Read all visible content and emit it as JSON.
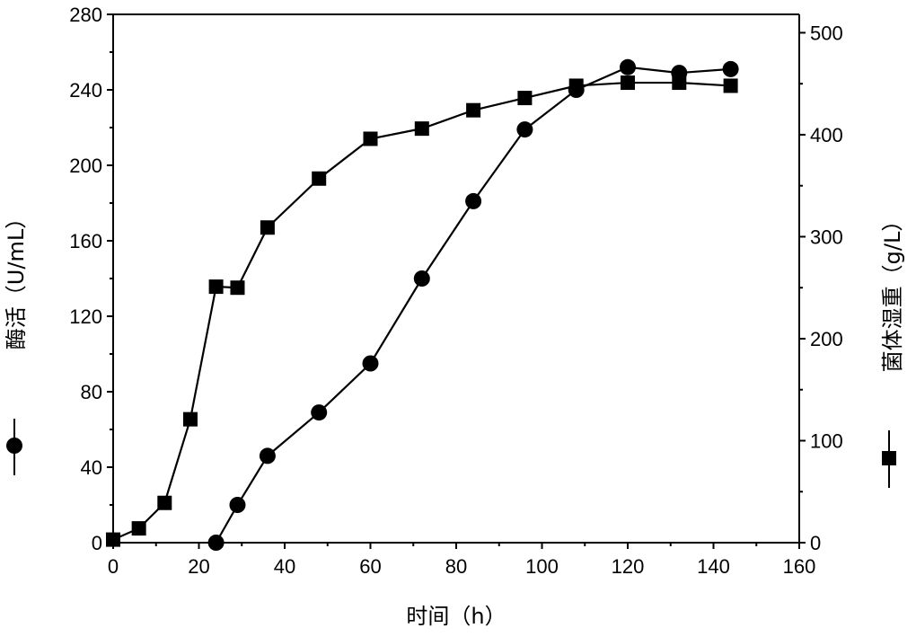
{
  "chart_data": {
    "type": "line",
    "xlabel": "时间（h）",
    "ylabel_left": "酶活（U/mL）",
    "ylabel_right": "菌体湿重（g/L）",
    "xlim": [
      0,
      160
    ],
    "ylim_left": [
      0,
      280
    ],
    "ylim_right": [
      0,
      518
    ],
    "x_ticks": [
      0,
      20,
      40,
      60,
      80,
      100,
      120,
      140,
      160
    ],
    "y_left_ticks": [
      0,
      40,
      80,
      120,
      160,
      200,
      240,
      280
    ],
    "y_right_ticks": [
      0,
      100,
      200,
      300,
      400,
      500
    ],
    "grid": false,
    "legend": "axis-side markers (circle on left axis, square on right axis)",
    "series": [
      {
        "axis": "left",
        "marker": "circle",
        "x": [
          24,
          29,
          36,
          48,
          60,
          72,
          84,
          96,
          108,
          120,
          132,
          144
        ],
        "values": [
          0,
          20,
          46,
          69,
          95,
          140,
          181,
          219,
          240,
          252,
          249,
          251
        ]
      },
      {
        "axis": "right",
        "marker": "square",
        "x": [
          0,
          6,
          12,
          18,
          24,
          29,
          36,
          48,
          60,
          72,
          84,
          96,
          108,
          120,
          132,
          144
        ],
        "values": [
          3,
          14,
          39,
          121,
          251,
          250,
          309,
          357,
          396,
          406,
          424,
          436,
          448,
          451,
          451,
          448
        ]
      }
    ]
  }
}
